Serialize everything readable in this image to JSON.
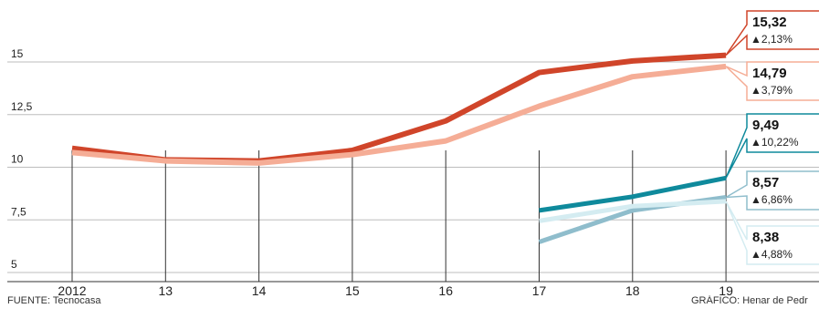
{
  "chart_data": {
    "type": "line",
    "x": [
      "2012",
      "13",
      "14",
      "15",
      "16",
      "17",
      "18",
      "19"
    ],
    "ylim": [
      5,
      15
    ],
    "yticks": [
      "5",
      "7,5",
      "10",
      "12,5",
      "15"
    ],
    "series": [
      {
        "color": "#d0452a",
        "values": [
          10.9,
          10.35,
          10.3,
          10.8,
          12.2,
          14.5,
          15.05,
          15.32
        ]
      },
      {
        "color": "#f5ad96",
        "values": [
          10.7,
          10.3,
          10.2,
          10.6,
          11.25,
          12.9,
          14.3,
          14.79
        ]
      },
      {
        "color": "#0f8a9c",
        "values": [
          null,
          null,
          null,
          null,
          null,
          7.95,
          8.6,
          9.49
        ]
      },
      {
        "color": "#8fbdcc",
        "values": [
          null,
          null,
          null,
          null,
          null,
          6.45,
          7.95,
          8.57
        ]
      },
      {
        "color": "#d4ecf1",
        "values": [
          null,
          null,
          null,
          null,
          null,
          7.45,
          8.15,
          8.38
        ]
      }
    ],
    "annotations": [
      {
        "value": "15,32",
        "change": "▲2,13%",
        "color": "#d0452a"
      },
      {
        "value": "14,79",
        "change": "▲3,79%",
        "color": "#f5ad96"
      },
      {
        "value": "9,49",
        "change": "▲10,22%",
        "color": "#0f8a9c"
      },
      {
        "value": "8,57",
        "change": "▲6,86%",
        "color": "#8fbdcc"
      },
      {
        "value": "8,38",
        "change": "▲4,88%",
        "color": "#d4ecf1"
      }
    ]
  },
  "footer": {
    "source": "FUENTE: Tecnocasa",
    "credit": "GRÁFICO: Henar de Pedr"
  }
}
